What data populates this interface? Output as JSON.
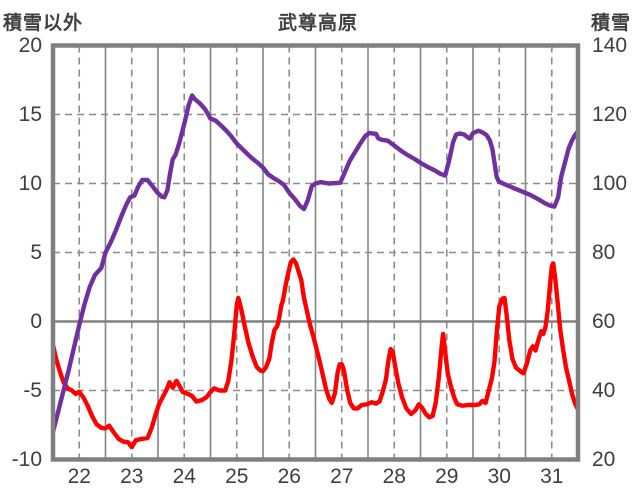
{
  "header": {
    "left_axis_title": "積雪以外",
    "title": "武尊高原",
    "right_axis_title": "積雪"
  },
  "colors": {
    "snow_line": "#7030A0",
    "non_snow_line": "#FF0000",
    "grid_dashed": "#8C8C8C",
    "grid_solid": "#858585",
    "zero_line": "#808080",
    "border": "#808080",
    "text": "#3F3F3F",
    "background": "#FFFFFF"
  },
  "chart_data": {
    "type": "line",
    "title": "武尊高原",
    "x_axis": {
      "min": 21.5,
      "max": 31.5,
      "ticks": [
        22,
        23,
        24,
        25,
        26,
        27,
        28,
        29,
        30,
        31
      ],
      "major_gridlines": "dashed at labeled days, solid at half days",
      "grid": true
    },
    "left_axis": {
      "title": "積雪以外",
      "min": -10,
      "max": 20,
      "ticks": [
        20,
        15,
        10,
        5,
        0,
        -5,
        -10
      ]
    },
    "right_axis": {
      "title": "積雪",
      "min": 20,
      "max": 140,
      "ticks": [
        140,
        120,
        100,
        80,
        60,
        40,
        20
      ]
    },
    "legend": "none",
    "series": [
      {
        "name": "積雪以外",
        "axis": "left",
        "color": "#FF0000",
        "points": [
          [
            21.5,
            -1.7
          ],
          [
            21.56,
            -2.7
          ],
          [
            21.63,
            -3.6
          ],
          [
            21.7,
            -4.4
          ],
          [
            21.78,
            -4.85
          ],
          [
            21.86,
            -5.0
          ],
          [
            21.93,
            -5.25
          ],
          [
            22.0,
            -5.1
          ],
          [
            22.08,
            -5.5
          ],
          [
            22.16,
            -6.1
          ],
          [
            22.25,
            -6.9
          ],
          [
            22.33,
            -7.45
          ],
          [
            22.42,
            -7.7
          ],
          [
            22.5,
            -7.75
          ],
          [
            22.57,
            -7.55
          ],
          [
            22.65,
            -8.0
          ],
          [
            22.75,
            -8.5
          ],
          [
            22.84,
            -8.7
          ],
          [
            22.93,
            -8.75
          ],
          [
            23.0,
            -9.1
          ],
          [
            23.08,
            -8.6
          ],
          [
            23.2,
            -8.5
          ],
          [
            23.3,
            -8.45
          ],
          [
            23.38,
            -7.7
          ],
          [
            23.45,
            -6.8
          ],
          [
            23.52,
            -6.0
          ],
          [
            23.6,
            -5.4
          ],
          [
            23.67,
            -4.9
          ],
          [
            23.72,
            -4.4
          ],
          [
            23.78,
            -4.8
          ],
          [
            23.85,
            -4.3
          ],
          [
            23.9,
            -4.6
          ],
          [
            23.97,
            -5.1
          ],
          [
            24.07,
            -5.25
          ],
          [
            24.15,
            -5.4
          ],
          [
            24.23,
            -5.8
          ],
          [
            24.33,
            -5.7
          ],
          [
            24.42,
            -5.5
          ],
          [
            24.5,
            -5.1
          ],
          [
            24.57,
            -4.85
          ],
          [
            24.67,
            -5.0
          ],
          [
            24.78,
            -5.0
          ],
          [
            24.84,
            -4.3
          ],
          [
            24.9,
            -2.8
          ],
          [
            24.95,
            -1.0
          ],
          [
            25.0,
            1.2
          ],
          [
            25.03,
            1.7
          ],
          [
            25.08,
            1.0
          ],
          [
            25.15,
            -0.3
          ],
          [
            25.22,
            -1.5
          ],
          [
            25.3,
            -2.5
          ],
          [
            25.38,
            -3.3
          ],
          [
            25.45,
            -3.55
          ],
          [
            25.5,
            -3.6
          ],
          [
            25.56,
            -3.3
          ],
          [
            25.62,
            -2.7
          ],
          [
            25.67,
            -1.5
          ],
          [
            25.72,
            -0.6
          ],
          [
            25.77,
            -0.35
          ],
          [
            25.81,
            0.3
          ],
          [
            25.85,
            1.2
          ],
          [
            25.88,
            1.5
          ],
          [
            25.93,
            2.6
          ],
          [
            25.98,
            3.5
          ],
          [
            26.03,
            4.3
          ],
          [
            26.08,
            4.5
          ],
          [
            26.13,
            4.2
          ],
          [
            26.18,
            3.6
          ],
          [
            26.23,
            3.0
          ],
          [
            26.28,
            1.7
          ],
          [
            26.34,
            0.7
          ],
          [
            26.4,
            -0.3
          ],
          [
            26.46,
            -1.1
          ],
          [
            26.52,
            -2.0
          ],
          [
            26.58,
            -2.9
          ],
          [
            26.64,
            -3.9
          ],
          [
            26.7,
            -4.9
          ],
          [
            26.76,
            -5.6
          ],
          [
            26.81,
            -5.9
          ],
          [
            26.87,
            -5.2
          ],
          [
            26.92,
            -3.7
          ],
          [
            26.96,
            -3.1
          ],
          [
            27.0,
            -3.1
          ],
          [
            27.04,
            -3.5
          ],
          [
            27.1,
            -4.9
          ],
          [
            27.16,
            -5.9
          ],
          [
            27.23,
            -6.3
          ],
          [
            27.3,
            -6.3
          ],
          [
            27.38,
            -6.05
          ],
          [
            27.48,
            -6.0
          ],
          [
            27.57,
            -5.85
          ],
          [
            27.65,
            -5.95
          ],
          [
            27.72,
            -5.8
          ],
          [
            27.78,
            -5.1
          ],
          [
            27.84,
            -4.2
          ],
          [
            27.89,
            -2.8
          ],
          [
            27.93,
            -2.0
          ],
          [
            27.97,
            -2.2
          ],
          [
            28.02,
            -3.3
          ],
          [
            28.08,
            -4.5
          ],
          [
            28.15,
            -5.5
          ],
          [
            28.23,
            -6.3
          ],
          [
            28.32,
            -6.7
          ],
          [
            28.4,
            -6.45
          ],
          [
            28.47,
            -6.0
          ],
          [
            28.53,
            -6.25
          ],
          [
            28.6,
            -6.7
          ],
          [
            28.67,
            -6.95
          ],
          [
            28.73,
            -6.85
          ],
          [
            28.79,
            -5.9
          ],
          [
            28.85,
            -4.0
          ],
          [
            28.9,
            -1.9
          ],
          [
            28.93,
            -0.9
          ],
          [
            28.97,
            -2.2
          ],
          [
            29.02,
            -3.8
          ],
          [
            29.08,
            -4.7
          ],
          [
            29.14,
            -5.5
          ],
          [
            29.2,
            -6.0
          ],
          [
            29.3,
            -6.1
          ],
          [
            29.42,
            -6.05
          ],
          [
            29.54,
            -6.05
          ],
          [
            29.62,
            -6.0
          ],
          [
            29.68,
            -5.75
          ],
          [
            29.74,
            -5.9
          ],
          [
            29.8,
            -5.0
          ],
          [
            29.86,
            -4.1
          ],
          [
            29.91,
            -2.9
          ],
          [
            29.95,
            -0.9
          ],
          [
            30.0,
            1.1
          ],
          [
            30.06,
            1.65
          ],
          [
            30.1,
            1.7
          ],
          [
            30.14,
            0.5
          ],
          [
            30.19,
            -1.3
          ],
          [
            30.25,
            -2.7
          ],
          [
            30.32,
            -3.35
          ],
          [
            30.4,
            -3.6
          ],
          [
            30.46,
            -3.75
          ],
          [
            30.53,
            -3.0
          ],
          [
            30.59,
            -2.1
          ],
          [
            30.64,
            -1.8
          ],
          [
            30.69,
            -2.1
          ],
          [
            30.75,
            -1.3
          ],
          [
            30.8,
            -0.7
          ],
          [
            30.84,
            -0.9
          ],
          [
            30.88,
            -0.4
          ],
          [
            30.92,
            0.7
          ],
          [
            30.96,
            2.4
          ],
          [
            31.0,
            4.0
          ],
          [
            31.03,
            4.2
          ],
          [
            31.07,
            3.0
          ],
          [
            31.11,
            1.5
          ],
          [
            31.16,
            -0.5
          ],
          [
            31.21,
            -1.9
          ],
          [
            31.27,
            -3.3
          ],
          [
            31.33,
            -4.3
          ],
          [
            31.39,
            -5.3
          ],
          [
            31.45,
            -6.0
          ],
          [
            31.49,
            -6.3
          ]
        ]
      },
      {
        "name": "積雪",
        "axis": "right",
        "color": "#7030A0",
        "points": [
          [
            21.5,
            28
          ],
          [
            21.6,
            34
          ],
          [
            21.7,
            40
          ],
          [
            21.8,
            46
          ],
          [
            21.9,
            52.5
          ],
          [
            22.0,
            59
          ],
          [
            22.1,
            65
          ],
          [
            22.2,
            70
          ],
          [
            22.3,
            73.5
          ],
          [
            22.42,
            75.5
          ],
          [
            22.5,
            80
          ],
          [
            22.6,
            83
          ],
          [
            22.7,
            86.5
          ],
          [
            22.8,
            90.5
          ],
          [
            22.9,
            94
          ],
          [
            22.97,
            96
          ],
          [
            23.05,
            96.5
          ],
          [
            23.12,
            99
          ],
          [
            23.2,
            101
          ],
          [
            23.3,
            101
          ],
          [
            23.38,
            99.5
          ],
          [
            23.48,
            97.5
          ],
          [
            23.57,
            96.2
          ],
          [
            23.62,
            96
          ],
          [
            23.68,
            98
          ],
          [
            23.73,
            103
          ],
          [
            23.78,
            107
          ],
          [
            23.84,
            108.5
          ],
          [
            23.9,
            111.5
          ],
          [
            23.97,
            115.5
          ],
          [
            24.02,
            118.5
          ],
          [
            24.08,
            122.5
          ],
          [
            24.15,
            125.5
          ],
          [
            24.2,
            124.5
          ],
          [
            24.3,
            123.2
          ],
          [
            24.4,
            121.5
          ],
          [
            24.5,
            118.8
          ],
          [
            24.6,
            118.2
          ],
          [
            24.7,
            116.8
          ],
          [
            24.8,
            115.3
          ],
          [
            24.9,
            113.6
          ],
          [
            25.0,
            111.6
          ],
          [
            25.1,
            110.1
          ],
          [
            25.2,
            108.6
          ],
          [
            25.3,
            107.2
          ],
          [
            25.4,
            106
          ],
          [
            25.5,
            104.6
          ],
          [
            25.6,
            102.6
          ],
          [
            25.7,
            101.6
          ],
          [
            25.8,
            100.7
          ],
          [
            25.9,
            99.6
          ],
          [
            26.0,
            97.3
          ],
          [
            26.1,
            95.6
          ],
          [
            26.2,
            93.6
          ],
          [
            26.28,
            92.6
          ],
          [
            26.35,
            95
          ],
          [
            26.43,
            99.2
          ],
          [
            26.5,
            100
          ],
          [
            26.6,
            100.4
          ],
          [
            26.75,
            100
          ],
          [
            26.97,
            100.2
          ],
          [
            27.05,
            103
          ],
          [
            27.15,
            106.5
          ],
          [
            27.25,
            109
          ],
          [
            27.35,
            111.5
          ],
          [
            27.45,
            113.8
          ],
          [
            27.52,
            114.6
          ],
          [
            27.65,
            114.4
          ],
          [
            27.7,
            113
          ],
          [
            27.78,
            112.6
          ],
          [
            27.88,
            112.4
          ],
          [
            28.0,
            111
          ],
          [
            28.12,
            109.6
          ],
          [
            28.25,
            108.3
          ],
          [
            28.4,
            107
          ],
          [
            28.52,
            105.8
          ],
          [
            28.65,
            104.7
          ],
          [
            28.77,
            103.8
          ],
          [
            28.88,
            102.8
          ],
          [
            28.97,
            102.3
          ],
          [
            29.05,
            107
          ],
          [
            29.12,
            112
          ],
          [
            29.18,
            114.2
          ],
          [
            29.25,
            114.5
          ],
          [
            29.33,
            114.2
          ],
          [
            29.4,
            113.4
          ],
          [
            29.44,
            113
          ],
          [
            29.5,
            114.6
          ],
          [
            29.6,
            115.3
          ],
          [
            29.68,
            114.8
          ],
          [
            29.76,
            114
          ],
          [
            29.82,
            112.5
          ],
          [
            29.87,
            110
          ],
          [
            29.91,
            106
          ],
          [
            29.95,
            102
          ],
          [
            29.99,
            100.6
          ],
          [
            30.1,
            99.8
          ],
          [
            30.2,
            99.2
          ],
          [
            30.3,
            98.5
          ],
          [
            30.45,
            97.6
          ],
          [
            30.6,
            96.6
          ],
          [
            30.75,
            95.4
          ],
          [
            30.87,
            94.3
          ],
          [
            30.97,
            93.6
          ],
          [
            31.05,
            93.3
          ],
          [
            31.12,
            96
          ],
          [
            31.18,
            102
          ],
          [
            31.25,
            106
          ],
          [
            31.32,
            110
          ],
          [
            31.38,
            112.3
          ],
          [
            31.44,
            114
          ],
          [
            31.48,
            114.8
          ]
        ]
      }
    ]
  }
}
